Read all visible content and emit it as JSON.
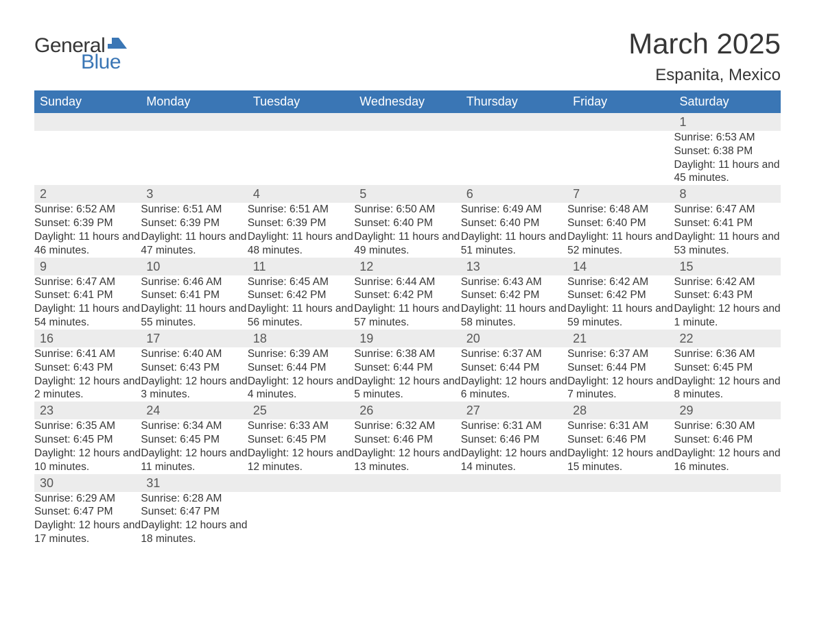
{
  "logo": {
    "word1": "General",
    "word2": "Blue",
    "flag_color": "#3a76b5"
  },
  "title": "March 2025",
  "location": "Espanita, Mexico",
  "colors": {
    "header_bg": "#3a76b5",
    "header_text": "#ffffff",
    "daynum_bg": "#ececec",
    "row_divider": "#3a76b5",
    "text": "#363636"
  },
  "day_headers": [
    "Sunday",
    "Monday",
    "Tuesday",
    "Wednesday",
    "Thursday",
    "Friday",
    "Saturday"
  ],
  "weeks": [
    {
      "days": [
        null,
        null,
        null,
        null,
        null,
        null,
        {
          "n": "1",
          "sunrise": "6:53 AM",
          "sunset": "6:38 PM",
          "daylight": "11 hours and 45 minutes."
        }
      ]
    },
    {
      "days": [
        {
          "n": "2",
          "sunrise": "6:52 AM",
          "sunset": "6:39 PM",
          "daylight": "11 hours and 46 minutes."
        },
        {
          "n": "3",
          "sunrise": "6:51 AM",
          "sunset": "6:39 PM",
          "daylight": "11 hours and 47 minutes."
        },
        {
          "n": "4",
          "sunrise": "6:51 AM",
          "sunset": "6:39 PM",
          "daylight": "11 hours and 48 minutes."
        },
        {
          "n": "5",
          "sunrise": "6:50 AM",
          "sunset": "6:40 PM",
          "daylight": "11 hours and 49 minutes."
        },
        {
          "n": "6",
          "sunrise": "6:49 AM",
          "sunset": "6:40 PM",
          "daylight": "11 hours and 51 minutes."
        },
        {
          "n": "7",
          "sunrise": "6:48 AM",
          "sunset": "6:40 PM",
          "daylight": "11 hours and 52 minutes."
        },
        {
          "n": "8",
          "sunrise": "6:47 AM",
          "sunset": "6:41 PM",
          "daylight": "11 hours and 53 minutes."
        }
      ]
    },
    {
      "days": [
        {
          "n": "9",
          "sunrise": "6:47 AM",
          "sunset": "6:41 PM",
          "daylight": "11 hours and 54 minutes."
        },
        {
          "n": "10",
          "sunrise": "6:46 AM",
          "sunset": "6:41 PM",
          "daylight": "11 hours and 55 minutes."
        },
        {
          "n": "11",
          "sunrise": "6:45 AM",
          "sunset": "6:42 PM",
          "daylight": "11 hours and 56 minutes."
        },
        {
          "n": "12",
          "sunrise": "6:44 AM",
          "sunset": "6:42 PM",
          "daylight": "11 hours and 57 minutes."
        },
        {
          "n": "13",
          "sunrise": "6:43 AM",
          "sunset": "6:42 PM",
          "daylight": "11 hours and 58 minutes."
        },
        {
          "n": "14",
          "sunrise": "6:42 AM",
          "sunset": "6:42 PM",
          "daylight": "11 hours and 59 minutes."
        },
        {
          "n": "15",
          "sunrise": "6:42 AM",
          "sunset": "6:43 PM",
          "daylight": "12 hours and 1 minute."
        }
      ]
    },
    {
      "days": [
        {
          "n": "16",
          "sunrise": "6:41 AM",
          "sunset": "6:43 PM",
          "daylight": "12 hours and 2 minutes."
        },
        {
          "n": "17",
          "sunrise": "6:40 AM",
          "sunset": "6:43 PM",
          "daylight": "12 hours and 3 minutes."
        },
        {
          "n": "18",
          "sunrise": "6:39 AM",
          "sunset": "6:44 PM",
          "daylight": "12 hours and 4 minutes."
        },
        {
          "n": "19",
          "sunrise": "6:38 AM",
          "sunset": "6:44 PM",
          "daylight": "12 hours and 5 minutes."
        },
        {
          "n": "20",
          "sunrise": "6:37 AM",
          "sunset": "6:44 PM",
          "daylight": "12 hours and 6 minutes."
        },
        {
          "n": "21",
          "sunrise": "6:37 AM",
          "sunset": "6:44 PM",
          "daylight": "12 hours and 7 minutes."
        },
        {
          "n": "22",
          "sunrise": "6:36 AM",
          "sunset": "6:45 PM",
          "daylight": "12 hours and 8 minutes."
        }
      ]
    },
    {
      "days": [
        {
          "n": "23",
          "sunrise": "6:35 AM",
          "sunset": "6:45 PM",
          "daylight": "12 hours and 10 minutes."
        },
        {
          "n": "24",
          "sunrise": "6:34 AM",
          "sunset": "6:45 PM",
          "daylight": "12 hours and 11 minutes."
        },
        {
          "n": "25",
          "sunrise": "6:33 AM",
          "sunset": "6:45 PM",
          "daylight": "12 hours and 12 minutes."
        },
        {
          "n": "26",
          "sunrise": "6:32 AM",
          "sunset": "6:46 PM",
          "daylight": "12 hours and 13 minutes."
        },
        {
          "n": "27",
          "sunrise": "6:31 AM",
          "sunset": "6:46 PM",
          "daylight": "12 hours and 14 minutes."
        },
        {
          "n": "28",
          "sunrise": "6:31 AM",
          "sunset": "6:46 PM",
          "daylight": "12 hours and 15 minutes."
        },
        {
          "n": "29",
          "sunrise": "6:30 AM",
          "sunset": "6:46 PM",
          "daylight": "12 hours and 16 minutes."
        }
      ]
    },
    {
      "days": [
        {
          "n": "30",
          "sunrise": "6:29 AM",
          "sunset": "6:47 PM",
          "daylight": "12 hours and 17 minutes."
        },
        {
          "n": "31",
          "sunrise": "6:28 AM",
          "sunset": "6:47 PM",
          "daylight": "12 hours and 18 minutes."
        },
        null,
        null,
        null,
        null,
        null
      ]
    }
  ],
  "labels": {
    "sunrise": "Sunrise: ",
    "sunset": "Sunset: ",
    "daylight": "Daylight: "
  }
}
